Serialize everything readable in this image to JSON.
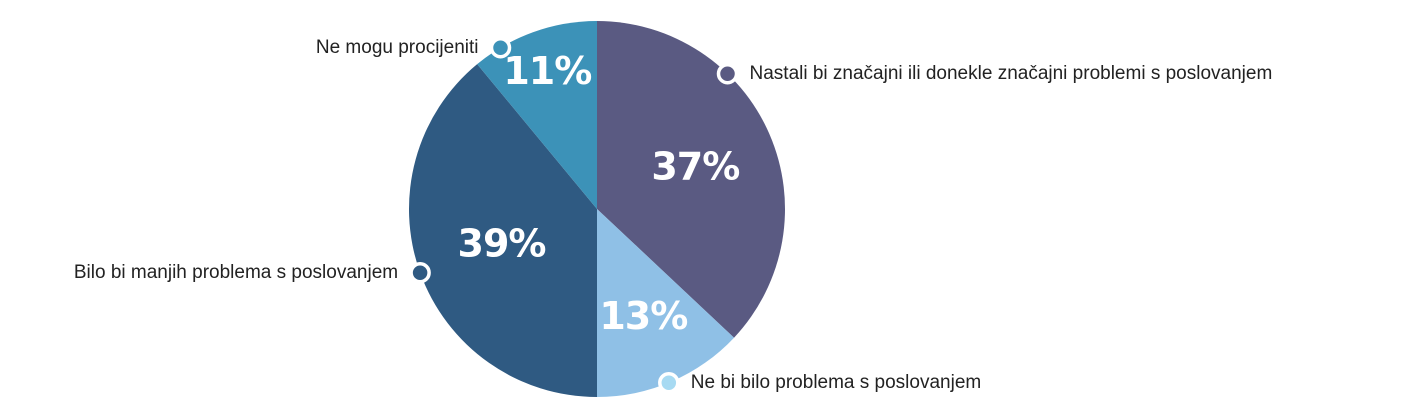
{
  "chart_data": {
    "type": "pie",
    "title": "",
    "start_angle_deg": 0,
    "direction": "clockwise",
    "slices": [
      {
        "label": "Nastali bi značajni ili donekle značajni problemi s poslovanjem",
        "value": 37,
        "value_label": "37%",
        "color": "#5a5a82",
        "dot_color": "#5a5a82",
        "label_side": "right"
      },
      {
        "label": "Ne bi bilo problema s poslovanjem",
        "value": 13,
        "value_label": "13%",
        "color": "#8fc0e6",
        "dot_color": "#a7daf2",
        "label_side": "right"
      },
      {
        "label": "Bilo bi manjih problema s poslovanjem",
        "value": 39,
        "value_label": "39%",
        "color": "#2f5a82",
        "dot_color": "#2f5a82",
        "label_side": "left"
      },
      {
        "label": "Ne mogu procijeniti",
        "value": 11,
        "value_label": "11%",
        "color": "#3c92b8",
        "dot_color": "#3c92b8",
        "label_side": "left"
      }
    ]
  }
}
